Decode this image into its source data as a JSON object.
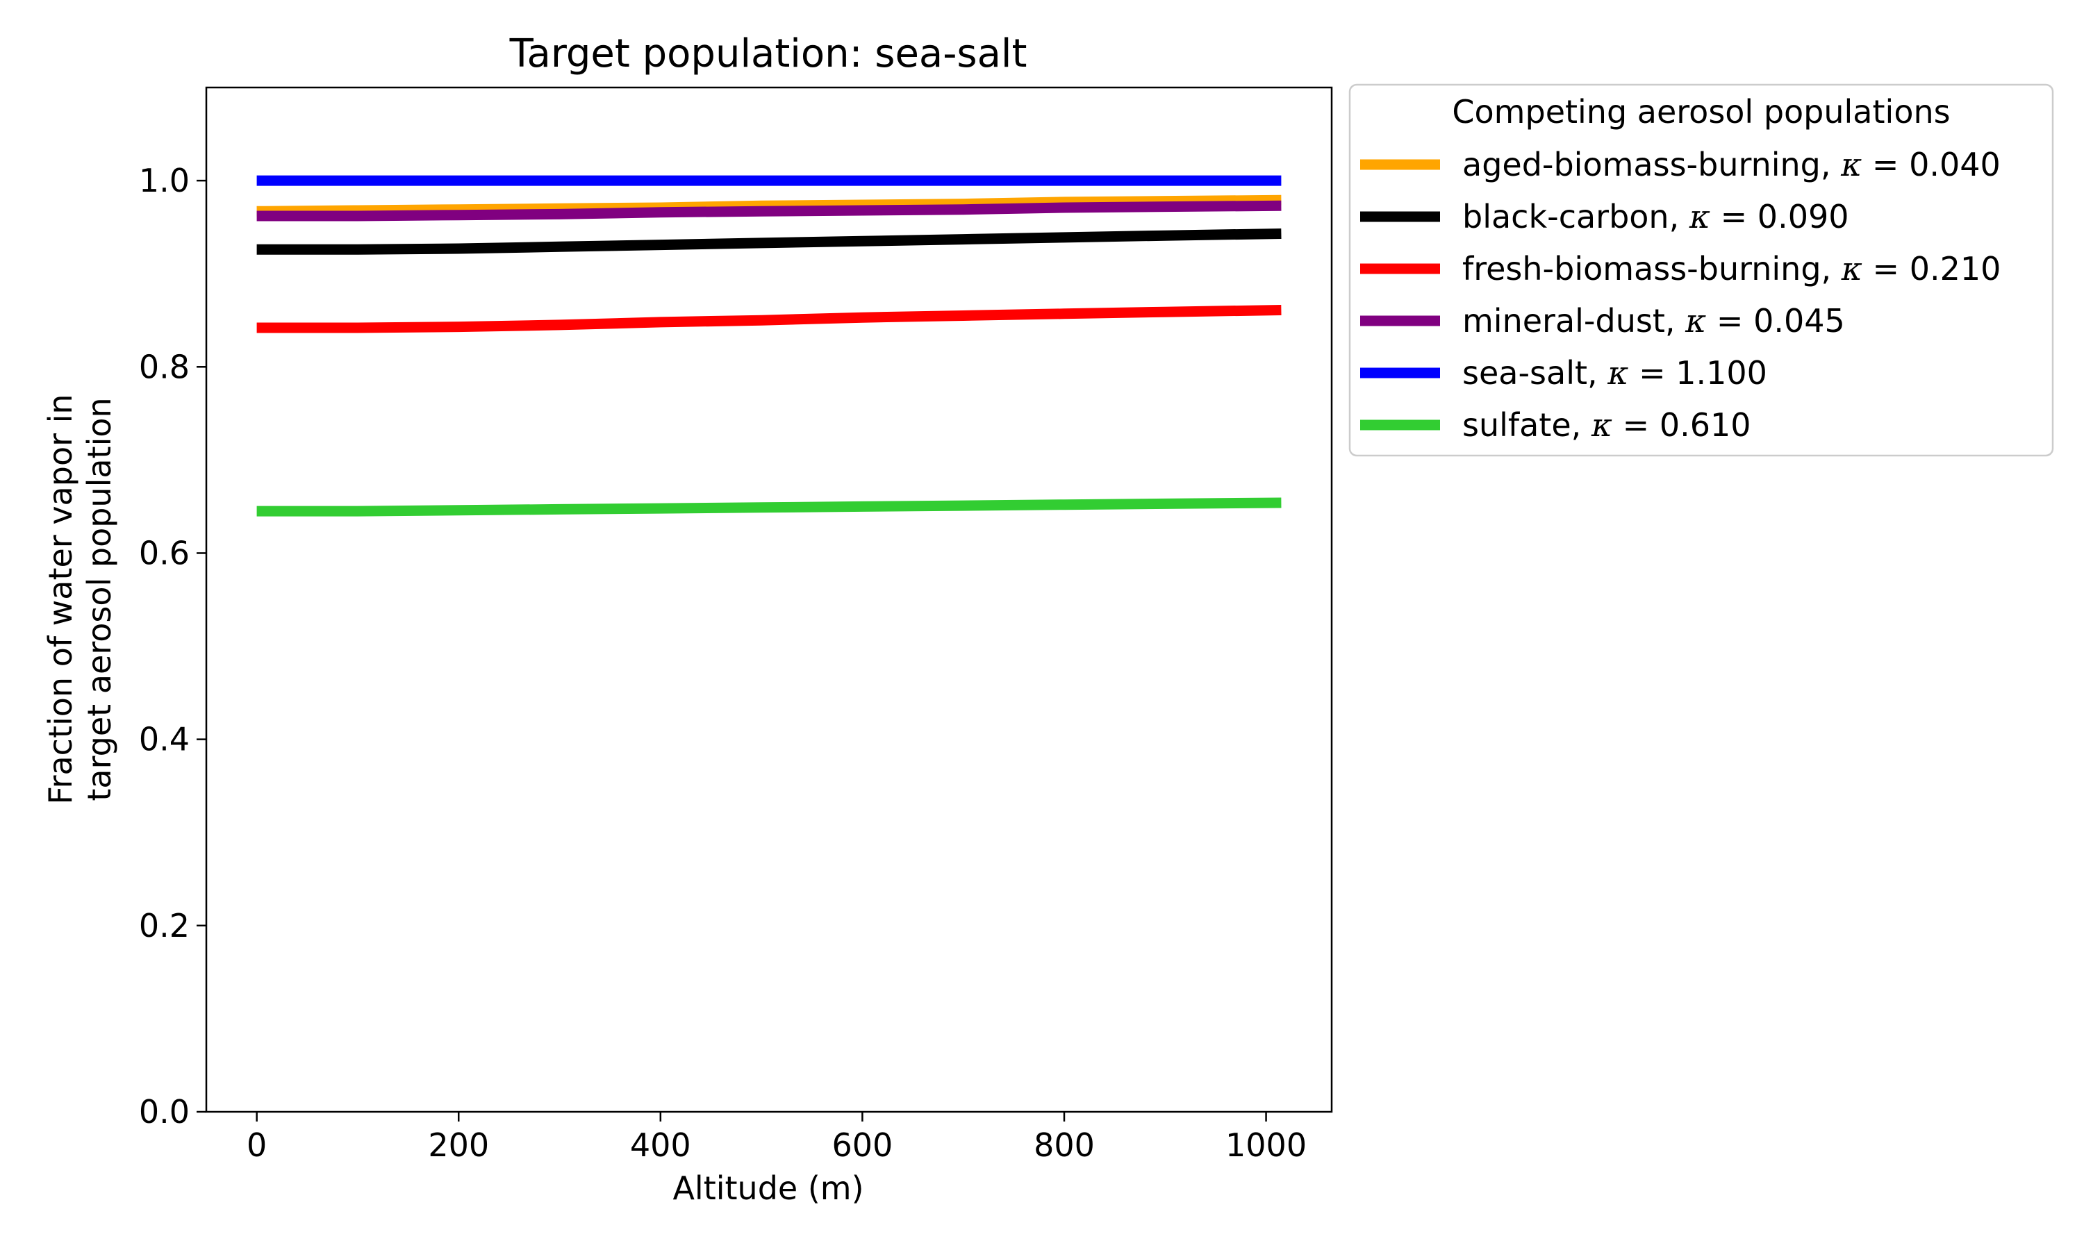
{
  "chart_data": {
    "type": "line",
    "title": "Target population: sea-salt",
    "xlabel": "Altitude (m)",
    "ylabel_lines": [
      "Fraction of water vapor in",
      "target aerosol population"
    ],
    "xlim": [
      -50,
      1065
    ],
    "ylim": [
      0.0,
      1.1
    ],
    "x_ticks": [
      0,
      200,
      400,
      600,
      800,
      1000
    ],
    "x_tick_labels": [
      "0",
      "200",
      "400",
      "600",
      "800",
      "1000"
    ],
    "y_ticks": [
      0.0,
      0.2,
      0.4,
      0.6,
      0.8,
      1.0
    ],
    "y_tick_labels": [
      "0.0",
      "0.2",
      "0.4",
      "0.6",
      "0.8",
      "1.0"
    ],
    "grid": false,
    "legend": {
      "title": "Competing aerosol populations",
      "placement": "outside-top-right"
    },
    "x": [
      0,
      100,
      200,
      300,
      400,
      500,
      600,
      700,
      800,
      900,
      1015
    ],
    "series": [
      {
        "name": "aged-biomass-burning",
        "kappa_label": "κ = 0.040",
        "color": "#ffa500",
        "values": [
          0.967,
          0.968,
          0.969,
          0.97,
          0.971,
          0.973,
          0.974,
          0.975,
          0.977,
          0.978,
          0.979
        ]
      },
      {
        "name": "black-carbon",
        "kappa_label": "κ = 0.090",
        "color": "#000000",
        "values": [
          0.926,
          0.926,
          0.927,
          0.929,
          0.931,
          0.933,
          0.935,
          0.937,
          0.939,
          0.941,
          0.943
        ]
      },
      {
        "name": "fresh-biomass-burning",
        "kappa_label": "κ = 0.210",
        "color": "#ff0000",
        "values": [
          0.842,
          0.842,
          0.843,
          0.845,
          0.848,
          0.85,
          0.853,
          0.855,
          0.857,
          0.859,
          0.861
        ]
      },
      {
        "name": "mineral-dust",
        "kappa_label": "κ = 0.045",
        "color": "#800080",
        "values": [
          0.962,
          0.962,
          0.963,
          0.964,
          0.966,
          0.967,
          0.968,
          0.969,
          0.971,
          0.972,
          0.973
        ]
      },
      {
        "name": "sea-salt",
        "kappa_label": "κ = 1.100",
        "color": "#0000ff",
        "values": [
          1.0,
          1.0,
          1.0,
          1.0,
          1.0,
          1.0,
          1.0,
          1.0,
          1.0,
          1.0,
          1.0
        ]
      },
      {
        "name": "sulfate",
        "kappa_label": "κ = 0.610",
        "color": "#32cd32",
        "values": [
          0.645,
          0.645,
          0.646,
          0.647,
          0.648,
          0.649,
          0.65,
          0.651,
          0.652,
          0.653,
          0.654
        ]
      }
    ]
  }
}
